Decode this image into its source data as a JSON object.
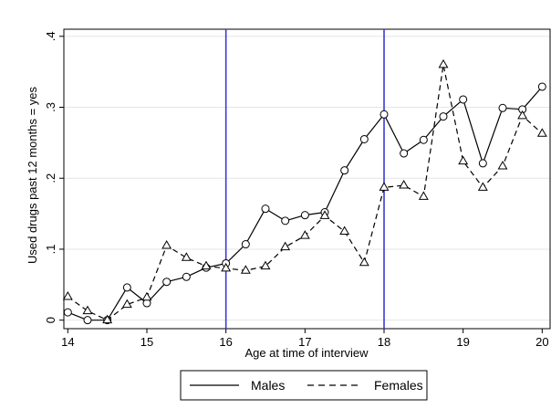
{
  "chart_data": {
    "type": "line",
    "xlabel": "Age at time of interview",
    "ylabel": "Used drugs past 12 months = yes",
    "xlim": [
      13.95,
      20.1
    ],
    "ylim": [
      -0.012,
      0.41
    ],
    "x_ticks": [
      14,
      15,
      16,
      17,
      18,
      19,
      20
    ],
    "x_tick_labels": [
      "14",
      "15",
      "16",
      "17",
      "18",
      "19",
      "20"
    ],
    "y_ticks": [
      0,
      0.1,
      0.2,
      0.3,
      0.4
    ],
    "y_tick_labels": [
      "0",
      ".1",
      ".2",
      ".3",
      ".4"
    ],
    "grid": "horizontal",
    "vertical_reference_lines": [
      16,
      18
    ],
    "reference_line_color": "#3a3ad6",
    "legend_position": "bottom",
    "x": [
      14,
      14.25,
      14.5,
      14.75,
      15,
      15.25,
      15.5,
      15.75,
      16,
      16.25,
      16.5,
      16.75,
      17,
      17.25,
      17.5,
      17.75,
      18,
      18.25,
      18.5,
      18.75,
      19,
      19.25,
      19.5,
      19.75,
      20
    ],
    "series": [
      {
        "name": "Males",
        "style": "solid",
        "marker": "circle",
        "values": [
          0.011,
          0.0,
          0.0,
          0.046,
          0.024,
          0.054,
          0.061,
          0.074,
          0.08,
          0.107,
          0.157,
          0.14,
          0.148,
          0.152,
          0.211,
          0.255,
          0.29,
          0.235,
          0.254,
          0.287,
          0.311,
          0.221,
          0.299,
          0.297,
          0.329
        ]
      },
      {
        "name": "Females",
        "style": "dashed",
        "marker": "triangle",
        "values": [
          0.033,
          0.013,
          0.0,
          0.022,
          0.032,
          0.105,
          0.088,
          0.076,
          0.073,
          0.07,
          0.076,
          0.103,
          0.119,
          0.147,
          0.125,
          0.081,
          0.187,
          0.19,
          0.174,
          0.36,
          0.224,
          0.187,
          0.217,
          0.288,
          0.263
        ]
      }
    ]
  }
}
